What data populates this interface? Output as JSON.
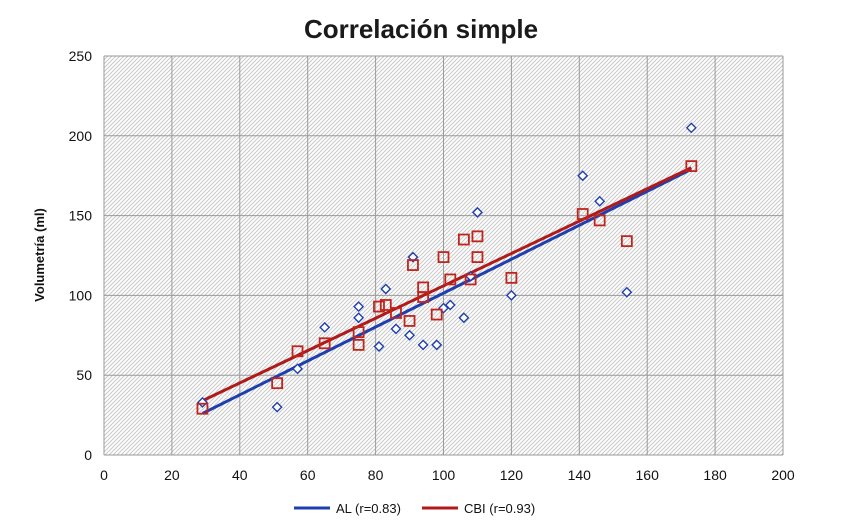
{
  "chart_data": {
    "type": "scatter",
    "title": "Correlación simple",
    "xlabel": "",
    "ylabel": "Volumetría (ml)",
    "xlim": [
      0,
      200
    ],
    "ylim": [
      0,
      250
    ],
    "x_ticks": [
      0,
      20,
      40,
      60,
      80,
      100,
      120,
      140,
      160,
      180,
      200
    ],
    "y_ticks": [
      0,
      50,
      100,
      150,
      200,
      250
    ],
    "grid": true,
    "legend_position": "bottom",
    "series": [
      {
        "name": "AL (r=0.83)",
        "marker": "diamond",
        "color": "#1f3fb0",
        "line_color": "#1f3fb0",
        "points": [
          [
            29,
            33
          ],
          [
            51,
            30
          ],
          [
            57,
            54
          ],
          [
            65,
            80
          ],
          [
            75,
            93
          ],
          [
            75,
            86
          ],
          [
            81,
            68
          ],
          [
            83,
            104
          ],
          [
            86,
            79
          ],
          [
            90,
            75
          ],
          [
            91,
            124
          ],
          [
            94,
            69
          ],
          [
            98,
            69
          ],
          [
            100,
            92
          ],
          [
            102,
            94
          ],
          [
            106,
            86
          ],
          [
            108,
            112
          ],
          [
            110,
            152
          ],
          [
            120,
            100
          ],
          [
            141,
            175
          ],
          [
            146,
            159
          ],
          [
            154,
            102
          ],
          [
            173,
            205
          ]
        ],
        "trendline": [
          [
            29,
            26
          ],
          [
            173,
            179
          ]
        ]
      },
      {
        "name": "CBI (r=0.93)",
        "marker": "square",
        "color": "#c0251d",
        "line_color": "#b01a1a",
        "points": [
          [
            29,
            29
          ],
          [
            51,
            45
          ],
          [
            57,
            65
          ],
          [
            65,
            70
          ],
          [
            75,
            77
          ],
          [
            75,
            69
          ],
          [
            81,
            93
          ],
          [
            83,
            94
          ],
          [
            86,
            89
          ],
          [
            90,
            84
          ],
          [
            91,
            119
          ],
          [
            94,
            105
          ],
          [
            94,
            99
          ],
          [
            98,
            88
          ],
          [
            100,
            124
          ],
          [
            102,
            110
          ],
          [
            106,
            135
          ],
          [
            108,
            110
          ],
          [
            110,
            137
          ],
          [
            110,
            124
          ],
          [
            120,
            111
          ],
          [
            141,
            151
          ],
          [
            146,
            147
          ],
          [
            154,
            134
          ],
          [
            173,
            181
          ]
        ],
        "trendline": [
          [
            29,
            34
          ],
          [
            173,
            180
          ]
        ]
      }
    ]
  }
}
